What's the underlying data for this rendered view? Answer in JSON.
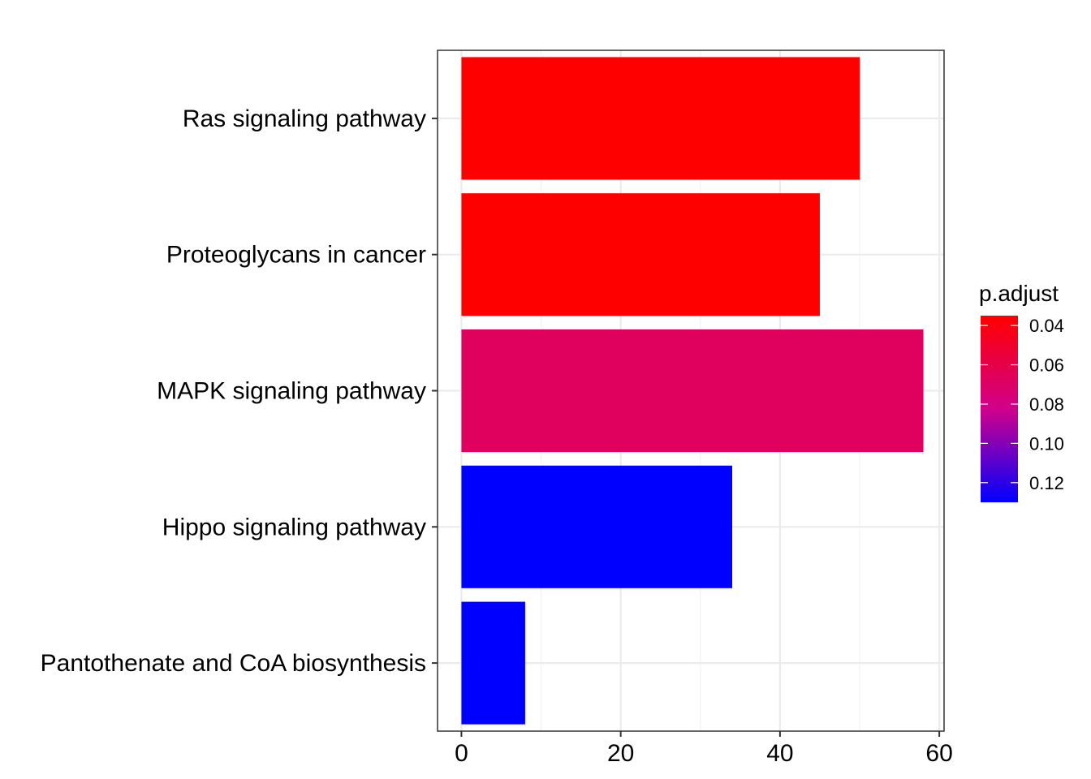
{
  "chart_data": {
    "type": "bar",
    "orientation": "horizontal",
    "categories": [
      "Ras signaling pathway",
      "Proteoglycans in cancer",
      "MAPK signaling pathway",
      "Hippo signaling pathway",
      "Pantothenate and CoA biosynthesis"
    ],
    "values": [
      50,
      45,
      58,
      34,
      8
    ],
    "p_adjust": [
      0.035,
      0.035,
      0.075,
      0.13,
      0.13
    ],
    "bar_colors": [
      "#FF0000",
      "#FF0000",
      "#E0005E",
      "#0000FF",
      "#0000FF"
    ],
    "xlim": [
      -3,
      60.6
    ],
    "xticks": [
      0,
      20,
      40,
      60
    ],
    "xtick_labels": [
      "0",
      "20",
      "40",
      "60"
    ],
    "grid": true,
    "title": "",
    "xlabel": "",
    "ylabel": "",
    "legend": {
      "title": "p.adjust",
      "placement": "right",
      "range": [
        0.035,
        0.13
      ],
      "ticks": [
        0.04,
        0.06,
        0.08,
        0.1,
        0.12
      ],
      "tick_labels": [
        "0.04",
        "0.06",
        "0.08",
        "0.10",
        "0.12"
      ],
      "low_color": "#FF0000",
      "high_color": "#0000FF"
    }
  }
}
